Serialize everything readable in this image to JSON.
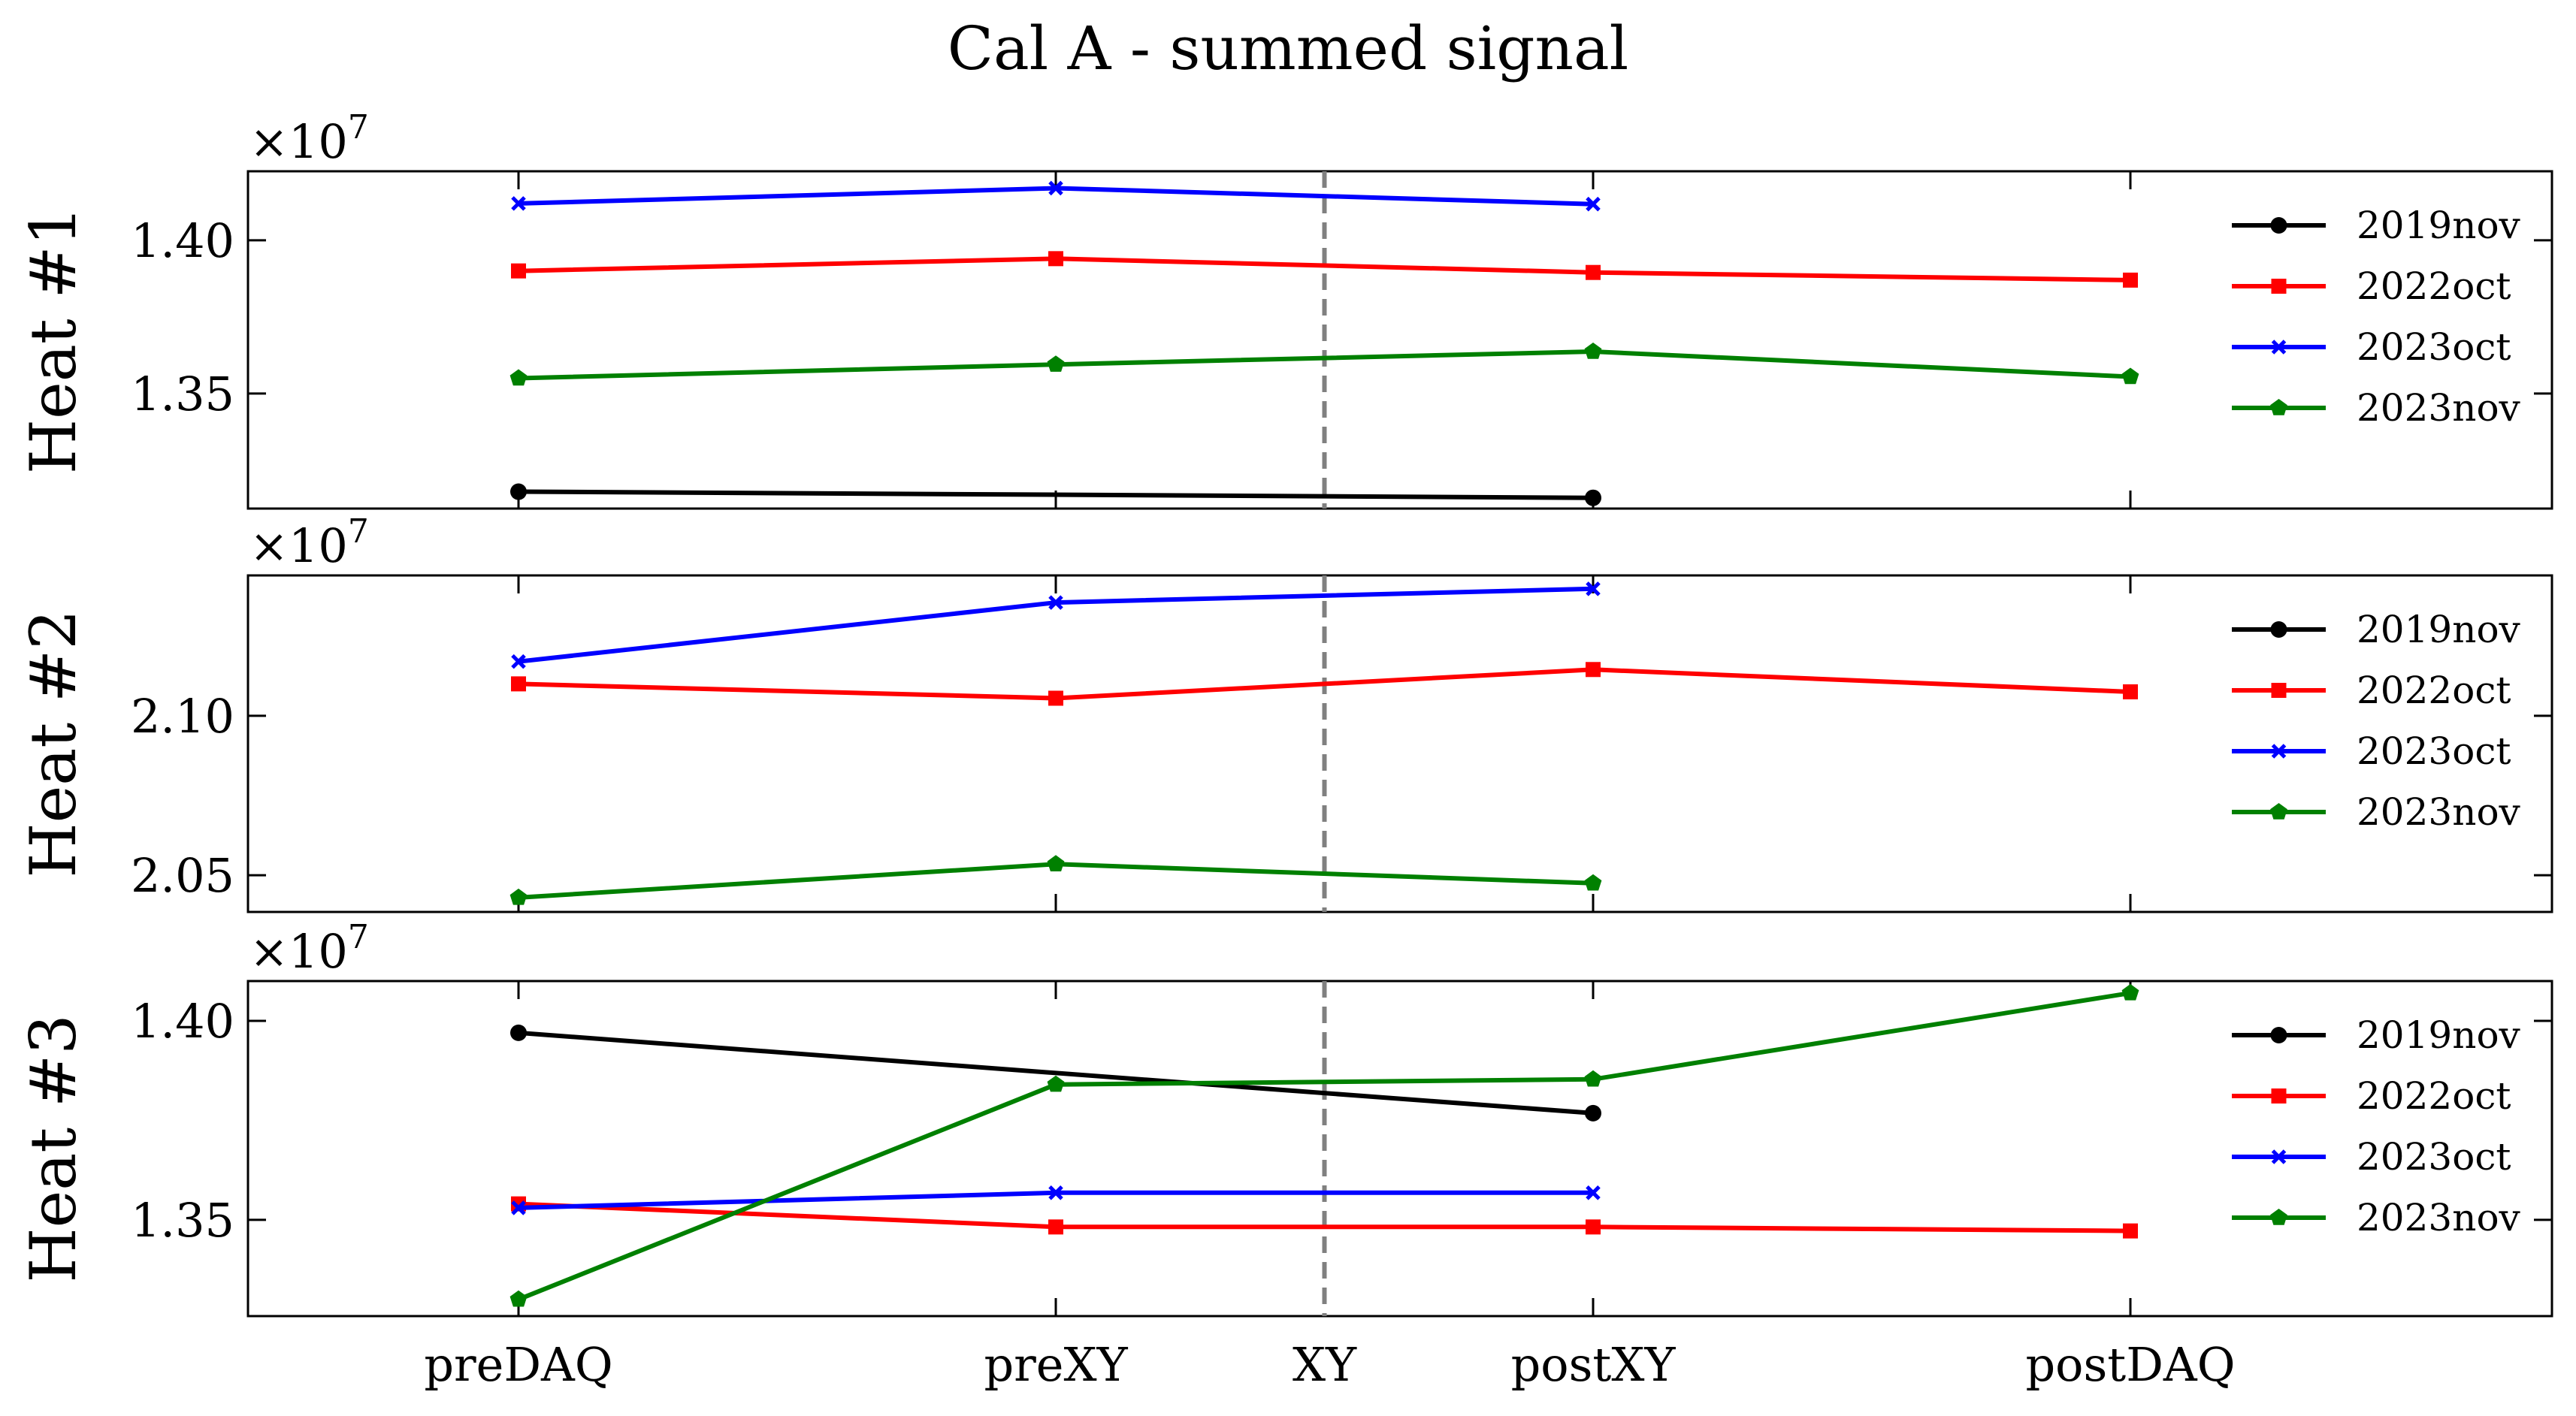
{
  "chart_data": {
    "type": "line",
    "title": "Cal A - summed signal",
    "categories": [
      "preDAQ",
      "preXY",
      "XY",
      "postXY",
      "postDAQ"
    ],
    "x_positions": [
      0,
      1,
      1.5,
      2,
      3
    ],
    "vline": {
      "x": 1.5,
      "style": "dashed",
      "color": "#808080"
    },
    "legend_placement": "right",
    "series_styles": [
      {
        "name": "2019nov",
        "color": "#000000",
        "marker": "circle"
      },
      {
        "name": "2022oct",
        "color": "#ff0000",
        "marker": "square"
      },
      {
        "name": "2023oct",
        "color": "#0000ff",
        "marker": "x"
      },
      {
        "name": "2023nov",
        "color": "#008000",
        "marker": "pentagon"
      }
    ],
    "panels": [
      {
        "ylabel": "Heat #1",
        "exponent": "×10",
        "exponent_power": "7",
        "ylim": [
          1.3125,
          1.4225
        ],
        "yticks": [
          1.35,
          1.4
        ],
        "ytick_labels": [
          "1.35",
          "1.40"
        ],
        "series": [
          {
            "name": "2019nov",
            "x": [
              0,
              2
            ],
            "values": [
              1.318,
              1.316
            ]
          },
          {
            "name": "2022oct",
            "x": [
              0,
              1,
              2,
              3
            ],
            "values": [
              1.39,
              1.394,
              1.3895,
              1.387
            ]
          },
          {
            "name": "2023oct",
            "x": [
              0,
              1,
              2
            ],
            "values": [
              1.412,
              1.417,
              1.4118
            ]
          },
          {
            "name": "2023nov",
            "x": [
              0,
              1,
              2,
              3
            ],
            "values": [
              1.355,
              1.3595,
              1.3637,
              1.3555
            ]
          }
        ]
      },
      {
        "ylabel": "Heat #2",
        "exponent": "×10",
        "exponent_power": "7",
        "ylim": [
          2.0385,
          2.144
        ],
        "yticks": [
          2.05,
          2.1
        ],
        "ytick_labels": [
          "2.05",
          "2.10"
        ],
        "series": [
          {
            "name": "2019nov",
            "x": [],
            "values": []
          },
          {
            "name": "2022oct",
            "x": [
              0,
              1,
              2,
              3
            ],
            "values": [
              2.11,
              2.1055,
              2.1145,
              2.1075
            ]
          },
          {
            "name": "2023oct",
            "x": [
              0,
              1,
              2
            ],
            "values": [
              2.117,
              2.1355,
              2.1398
            ]
          },
          {
            "name": "2023nov",
            "x": [
              0,
              1,
              2
            ],
            "values": [
              2.043,
              2.0535,
              2.0475
            ]
          }
        ]
      },
      {
        "ylabel": "Heat #3",
        "exponent": "×10",
        "exponent_power": "7",
        "ylim": [
          1.3258,
          1.41
        ],
        "yticks": [
          1.35,
          1.4
        ],
        "ytick_labels": [
          "1.35",
          "1.40"
        ],
        "series": [
          {
            "name": "2019nov",
            "x": [
              0,
              2
            ],
            "values": [
              1.397,
              1.3768
            ]
          },
          {
            "name": "2022oct",
            "x": [
              0,
              1,
              2,
              3
            ],
            "values": [
              1.354,
              1.3482,
              1.3482,
              1.3472
            ]
          },
          {
            "name": "2023oct",
            "x": [
              0,
              1,
              2
            ],
            "values": [
              1.353,
              1.3568,
              1.3568
            ]
          },
          {
            "name": "2023nov",
            "x": [
              0,
              1,
              2,
              3
            ],
            "values": [
              1.33,
              1.384,
              1.3853,
              1.407
            ]
          }
        ]
      }
    ]
  }
}
